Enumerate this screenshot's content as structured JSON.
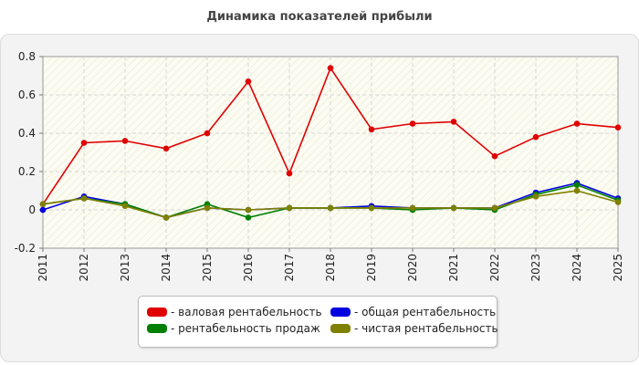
{
  "chart_data": {
    "type": "line",
    "title": "Динамика показателей прибыли",
    "categories": [
      "2011",
      "2012",
      "2013",
      "2014",
      "2015",
      "2016",
      "2017",
      "2018",
      "2019",
      "2020",
      "2021",
      "2022",
      "2023",
      "2024",
      "2025"
    ],
    "ylim": [
      -0.2,
      0.8
    ],
    "yticks": [
      "-0.2",
      "0",
      "0.2",
      "0.4",
      "0.6",
      "0.8"
    ],
    "grid": true,
    "legend_position": "bottom",
    "series": [
      {
        "name": "- валовая рентабельность",
        "color": "#e00000",
        "values": [
          0.03,
          0.35,
          0.36,
          0.32,
          0.4,
          0.67,
          0.19,
          0.74,
          0.42,
          0.45,
          0.46,
          0.28,
          0.38,
          0.45,
          0.43
        ]
      },
      {
        "name": "- общая рентабельность",
        "color": "#0000e0",
        "values": [
          0.0,
          0.07,
          0.03,
          -0.04,
          0.01,
          0.0,
          0.01,
          0.01,
          0.02,
          0.01,
          0.01,
          0.01,
          0.09,
          0.14,
          0.06
        ]
      },
      {
        "name": "- рентабельность продаж",
        "color": "#008000",
        "values": [
          0.03,
          0.06,
          0.03,
          -0.04,
          0.03,
          -0.04,
          0.01,
          0.01,
          0.01,
          0.0,
          0.01,
          0.0,
          0.08,
          0.13,
          0.05
        ]
      },
      {
        "name": "- чистая рентабельность",
        "color": "#808000",
        "values": [
          0.03,
          0.06,
          0.02,
          -0.04,
          0.01,
          0.0,
          0.01,
          0.01,
          0.01,
          0.01,
          0.01,
          0.01,
          0.07,
          0.1,
          0.04
        ]
      }
    ]
  }
}
